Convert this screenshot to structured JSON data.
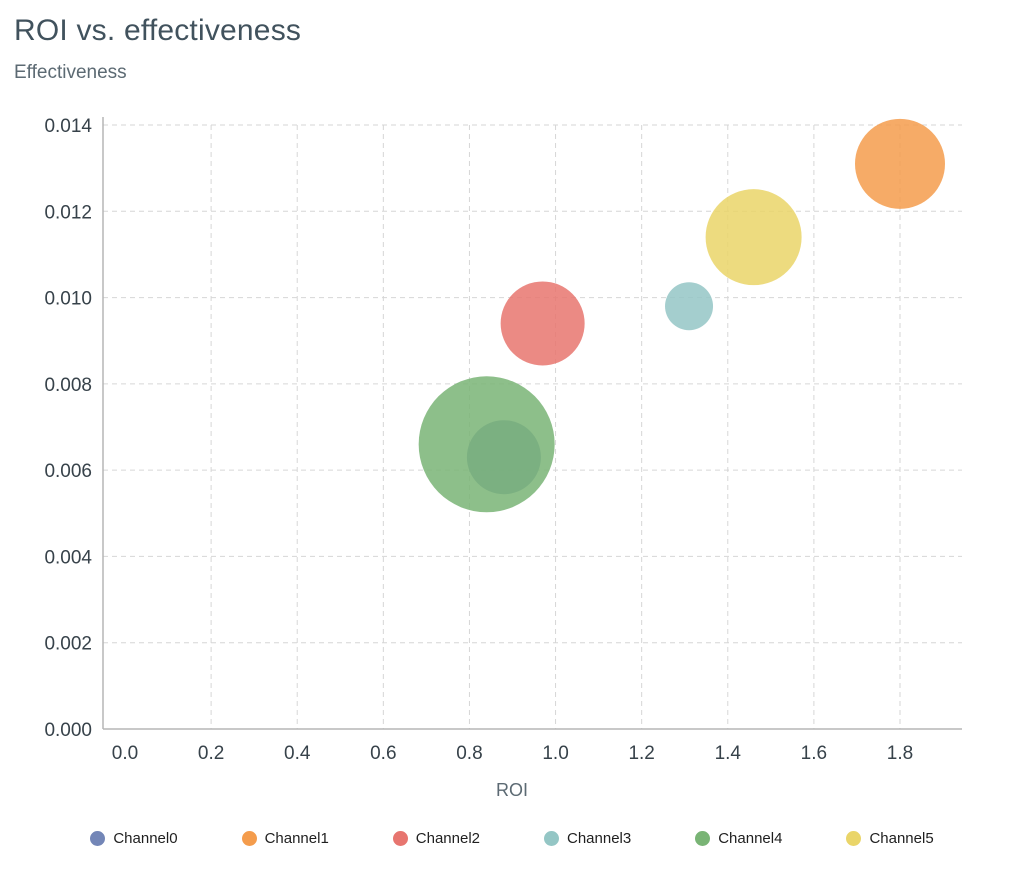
{
  "chart_data": {
    "type": "scatter",
    "variant": "bubble",
    "title": "ROI vs. effectiveness",
    "xlabel": "ROI",
    "ylabel": "Effectiveness",
    "xlim": [
      0,
      1.8
    ],
    "ylim": [
      0,
      0.014
    ],
    "grid": true,
    "grid_style": "dashed",
    "legend_position": "bottom",
    "x_ticks": [
      0,
      0.2,
      0.4,
      0.6,
      0.8,
      1.0,
      1.2,
      1.4,
      1.6,
      1.8
    ],
    "x_tick_labels": [
      "0.0",
      "0.2",
      "0.4",
      "0.6",
      "0.8",
      "1.0",
      "1.2",
      "1.4",
      "1.6",
      "1.8"
    ],
    "y_ticks": [
      0,
      0.002,
      0.004,
      0.006,
      0.008,
      0.01,
      0.012,
      0.014
    ],
    "y_tick_labels": [
      "0.000",
      "0.002",
      "0.004",
      "0.006",
      "0.008",
      "0.010",
      "0.012",
      "0.014"
    ],
    "series": [
      {
        "name": "Channel0",
        "color": "#7386b7",
        "x": 0.88,
        "y": 0.0063,
        "r": 37
      },
      {
        "name": "Channel1",
        "color": "#f49c4c",
        "x": 1.8,
        "y": 0.0131,
        "r": 45
      },
      {
        "name": "Channel2",
        "color": "#e7756f",
        "x": 0.97,
        "y": 0.0094,
        "r": 42
      },
      {
        "name": "Channel3",
        "color": "#94c6c5",
        "x": 1.31,
        "y": 0.0098,
        "r": 24
      },
      {
        "name": "Channel4",
        "color": "#79b475",
        "x": 0.84,
        "y": 0.0066,
        "r": 68
      },
      {
        "name": "Channel5",
        "color": "#ead569",
        "x": 1.46,
        "y": 0.0114,
        "r": 48
      }
    ],
    "style": {
      "bubble_opacity": "0.85",
      "grid_color": "#d6d6d6",
      "axis_color": "#b5b5b5"
    }
  }
}
